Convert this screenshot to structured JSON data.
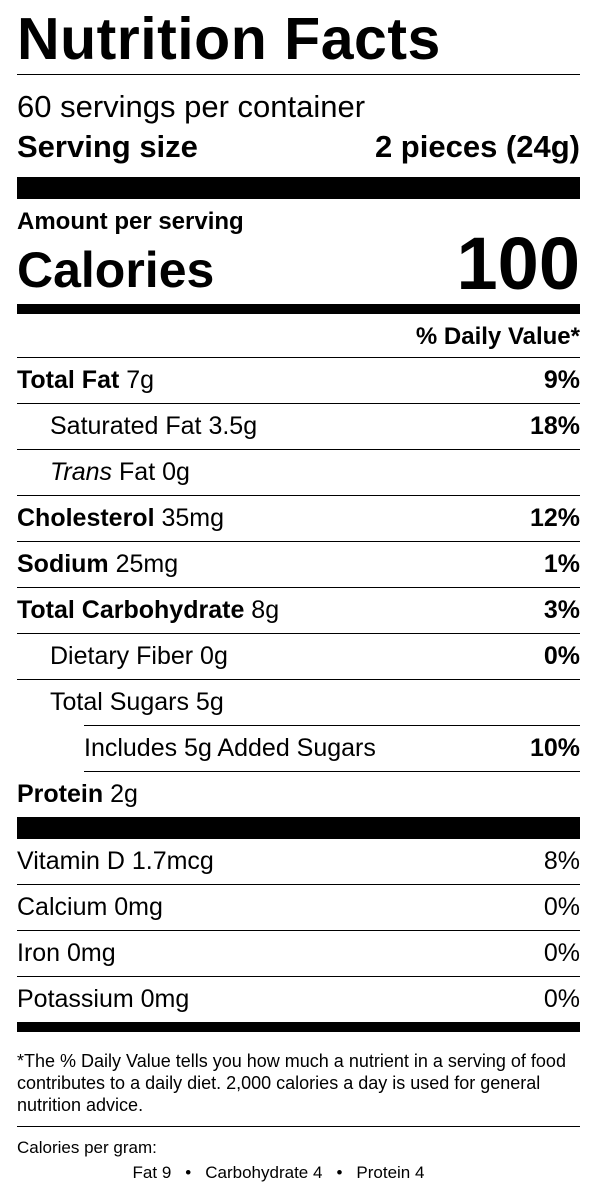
{
  "title": "Nutrition Facts",
  "servings_per_container": "60 servings per container",
  "serving_size": {
    "label": "Serving size",
    "value": "2 pieces (24g)"
  },
  "amount_per_serving": "Amount per serving",
  "calories": {
    "label": "Calories",
    "value": "100"
  },
  "daily_value_header": "% Daily Value*",
  "nutrients": {
    "total_fat": {
      "label": "Total Fat",
      "amount": "7g",
      "dv": "9%"
    },
    "saturated_fat": {
      "label": "Saturated Fat",
      "amount": "3.5g",
      "dv": "18%"
    },
    "trans_fat": {
      "label_italic": "Trans",
      "label": "Fat",
      "amount": "0g"
    },
    "cholesterol": {
      "label": "Cholesterol",
      "amount": "35mg",
      "dv": "12%"
    },
    "sodium": {
      "label": "Sodium",
      "amount": "25mg",
      "dv": "1%"
    },
    "total_carbohydrate": {
      "label": "Total Carbohydrate",
      "amount": "8g",
      "dv": "3%"
    },
    "dietary_fiber": {
      "label": "Dietary Fiber",
      "amount": "0g",
      "dv": "0%"
    },
    "total_sugars": {
      "label": "Total Sugars",
      "amount": "5g"
    },
    "added_sugars": {
      "text": "Includes 5g Added Sugars",
      "dv": "10%"
    },
    "protein": {
      "label": "Protein",
      "amount": "2g"
    }
  },
  "vitamins": [
    {
      "label": "Vitamin D 1.7mcg",
      "dv": "8%"
    },
    {
      "label": "Calcium 0mg",
      "dv": "0%"
    },
    {
      "label": "Iron 0mg",
      "dv": "0%"
    },
    {
      "label": "Potassium 0mg",
      "dv": "0%"
    }
  ],
  "footnote": "*The % Daily Value tells you how much a nutrient in a serving of food contributes to a daily diet. 2,000 calories a day is used for general nutrition advice.",
  "calories_per_gram": {
    "label": "Calories per gram:",
    "fat": "Fat 9",
    "carbohydrate": "Carbohydrate 4",
    "protein": "Protein 4",
    "separator": "•"
  }
}
